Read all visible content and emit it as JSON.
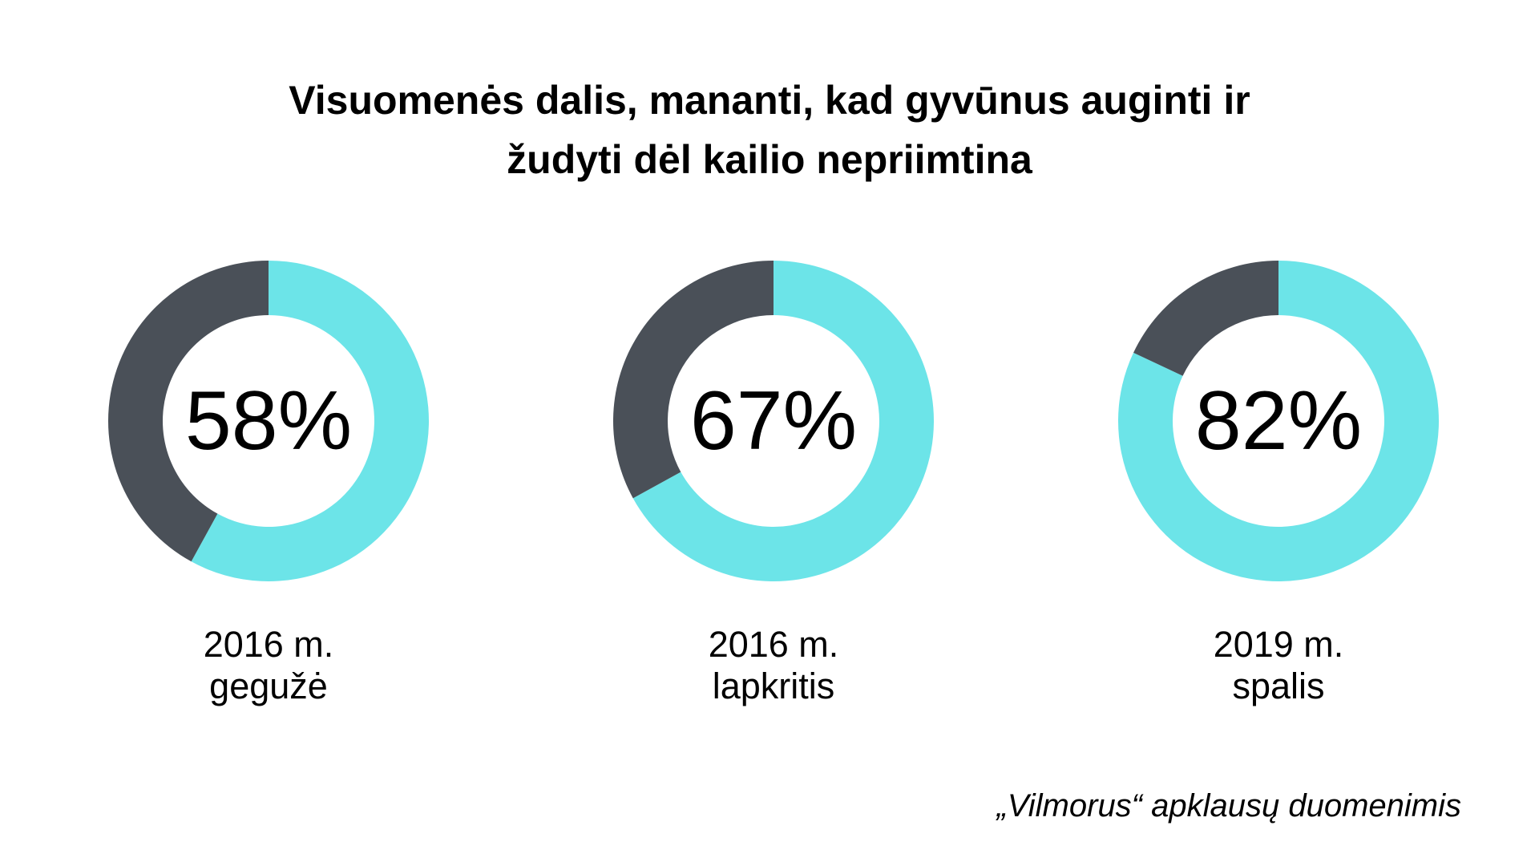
{
  "chart_data": {
    "type": "pie",
    "variant": "donut",
    "title": "Visuomenės dalis, mananti, kad gyvūnus auginti ir žudyti dėl kailio nepriimtina",
    "title_lines": [
      "Visuomenės dalis, mananti, kad gyvūnus auginti ir",
      "žudyti dėl kailio nepriimtina"
    ],
    "charts": [
      {
        "value": 58,
        "display": "58%",
        "label_lines": [
          "2016 m.",
          "gegužė"
        ]
      },
      {
        "value": 67,
        "display": "67%",
        "label_lines": [
          "2016 m.",
          "lapkritis"
        ]
      },
      {
        "value": 82,
        "display": "82%",
        "label_lines": [
          "2019 m.",
          "spalis"
        ]
      }
    ],
    "colors": {
      "value": "#6ce4e8",
      "remainder": "#4a5058"
    },
    "source": "„Vilmorus“ apklausų duomenimis"
  }
}
